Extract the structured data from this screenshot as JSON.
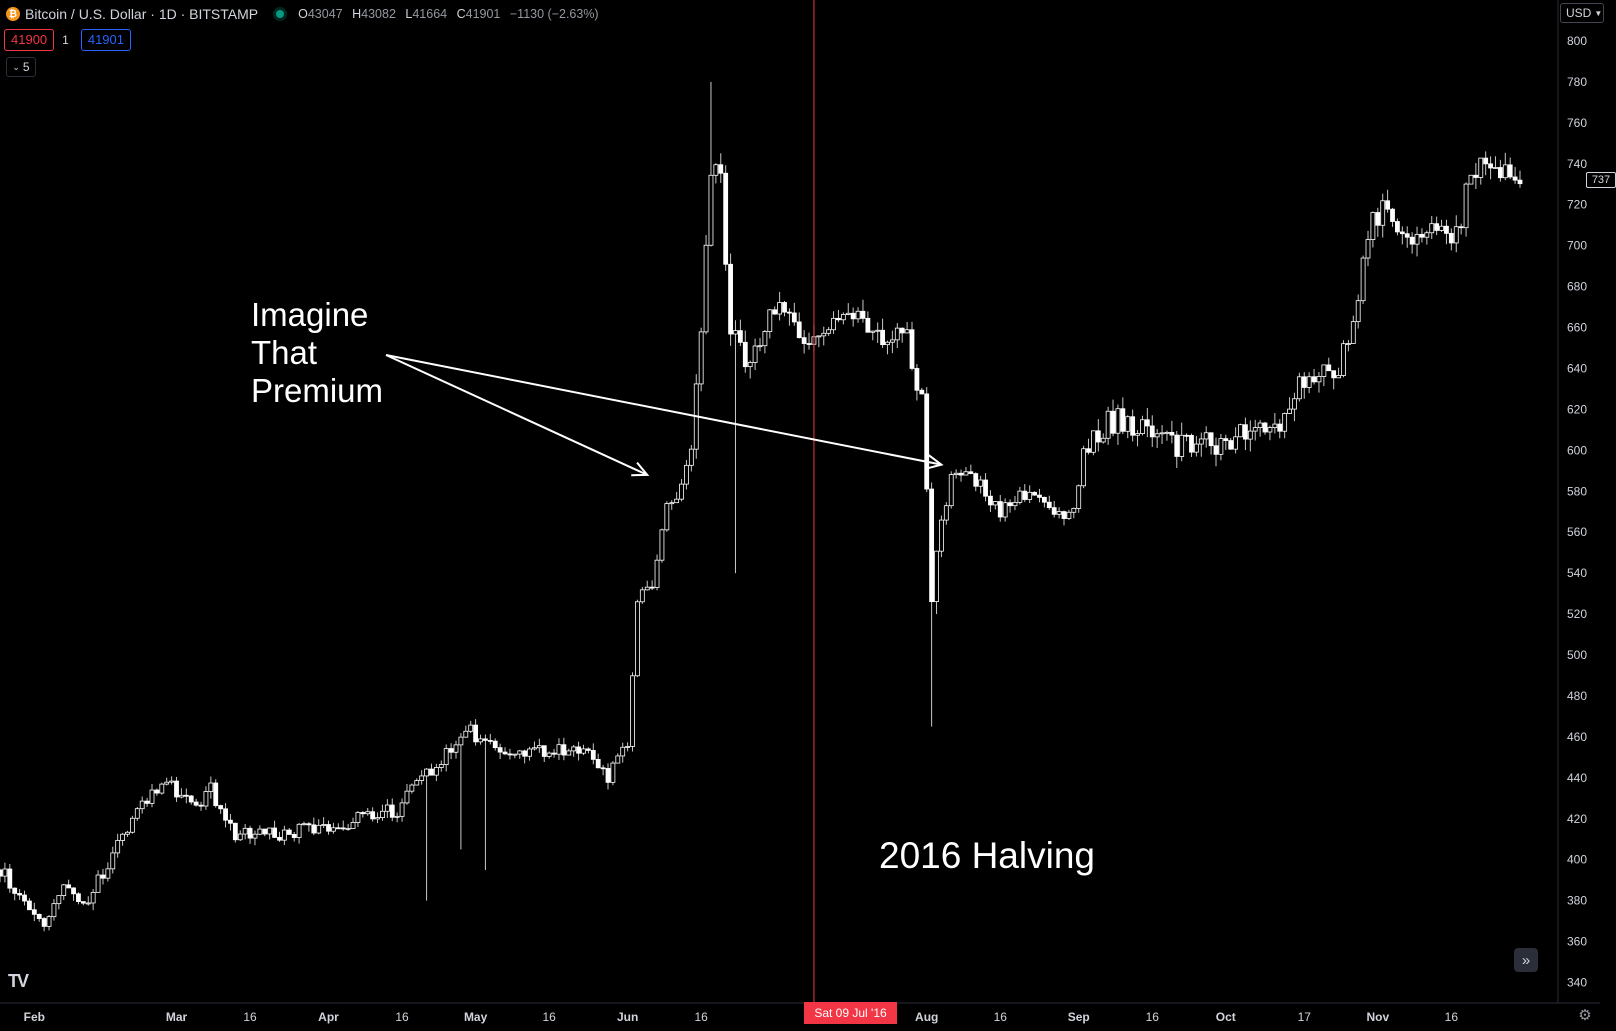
{
  "header": {
    "symbol": "Bitcoin / U.S. Dollar · 1D · BITSTAMP",
    "icon": "bitcoin-icon",
    "ohlc": {
      "o_label": "O",
      "o": "43047",
      "h_label": "H",
      "h": "43082",
      "l_label": "L",
      "l": "41664",
      "c_label": "C",
      "c": "41901",
      "change": "−1130 (−2.63%)"
    }
  },
  "trading": {
    "sell_price": "41900",
    "quantity": "1",
    "buy_price": "41901"
  },
  "indicators_toggle": {
    "count": "5"
  },
  "price_scale": {
    "currency_label": "USD",
    "current_price": "737"
  },
  "crosshair": {
    "date_label": "Sat 09 Jul '16"
  },
  "annotations": {
    "premium": "Imagine That Premium",
    "halving": "2016 Halving"
  },
  "colors": {
    "background": "#000000",
    "candle": "#ffffff",
    "wick": "#c8c8c8",
    "crosshair": "#f23645",
    "axis_text": "#d1d4dc",
    "accent_sell": "#f23645",
    "accent_buy": "#2962ff"
  },
  "chart_data": {
    "type": "candlestick",
    "title": "",
    "xlabel": "",
    "ylabel": "",
    "ylim": [
      330,
      820
    ],
    "x_range": [
      "2016-01-25",
      "2016-11-30"
    ],
    "y_ticks": [
      340,
      360,
      380,
      400,
      420,
      440,
      460,
      480,
      500,
      520,
      540,
      560,
      580,
      600,
      620,
      640,
      660,
      680,
      700,
      720,
      740,
      760,
      780,
      800
    ],
    "x_ticks": [
      {
        "date": "2016-02-01",
        "label": "Feb"
      },
      {
        "date": "2016-03-01",
        "label": "Mar"
      },
      {
        "date": "2016-03-16",
        "label": "16"
      },
      {
        "date": "2016-04-01",
        "label": "Apr"
      },
      {
        "date": "2016-04-16",
        "label": "16"
      },
      {
        "date": "2016-05-01",
        "label": "May"
      },
      {
        "date": "2016-05-16",
        "label": "16"
      },
      {
        "date": "2016-06-01",
        "label": "Jun"
      },
      {
        "date": "2016-06-16",
        "label": "16"
      },
      {
        "date": "2016-08-01",
        "label": "Aug"
      },
      {
        "date": "2016-08-16",
        "label": "16"
      },
      {
        "date": "2016-09-01",
        "label": "Sep"
      },
      {
        "date": "2016-09-16",
        "label": "16"
      },
      {
        "date": "2016-10-01",
        "label": "Oct"
      },
      {
        "date": "2016-10-17",
        "label": "17"
      },
      {
        "date": "2016-11-01",
        "label": "Nov"
      },
      {
        "date": "2016-11-16",
        "label": "16"
      }
    ],
    "crosshair_date": "2016-07-09",
    "close_anchors": [
      [
        "2016-01-25",
        395
      ],
      [
        "2016-01-30",
        378
      ],
      [
        "2016-02-03",
        368
      ],
      [
        "2016-02-07",
        385
      ],
      [
        "2016-02-12",
        378
      ],
      [
        "2016-02-18",
        410
      ],
      [
        "2016-02-24",
        430
      ],
      [
        "2016-02-28",
        440
      ],
      [
        "2016-03-04",
        425
      ],
      [
        "2016-03-08",
        435
      ],
      [
        "2016-03-13",
        412
      ],
      [
        "2016-03-20",
        412
      ],
      [
        "2016-03-30",
        415
      ],
      [
        "2016-04-08",
        420
      ],
      [
        "2016-04-15",
        425
      ],
      [
        "2016-04-20",
        438
      ],
      [
        "2016-04-26",
        455
      ],
      [
        "2016-04-30",
        462
      ],
      [
        "2016-05-06",
        455
      ],
      [
        "2016-05-12",
        452
      ],
      [
        "2016-05-18",
        455
      ],
      [
        "2016-05-24",
        450
      ],
      [
        "2016-05-28",
        440
      ],
      [
        "2016-06-01",
        455
      ],
      [
        "2016-06-03",
        530
      ],
      [
        "2016-06-06",
        535
      ],
      [
        "2016-06-09",
        575
      ],
      [
        "2016-06-12",
        580
      ],
      [
        "2016-06-14",
        600
      ],
      [
        "2016-06-16",
        660
      ],
      [
        "2016-06-18",
        740
      ],
      [
        "2016-06-20",
        730
      ],
      [
        "2016-06-22",
        660
      ],
      [
        "2016-06-24",
        650
      ],
      [
        "2016-06-26",
        640
      ],
      [
        "2016-06-30",
        670
      ],
      [
        "2016-07-03",
        665
      ],
      [
        "2016-07-06",
        655
      ],
      [
        "2016-07-09",
        650
      ],
      [
        "2016-07-12",
        660
      ],
      [
        "2016-07-15",
        665
      ],
      [
        "2016-07-18",
        670
      ],
      [
        "2016-07-21",
        660
      ],
      [
        "2016-07-24",
        655
      ],
      [
        "2016-07-28",
        655
      ],
      [
        "2016-07-31",
        625
      ],
      [
        "2016-08-02",
        530
      ],
      [
        "2016-08-04",
        565
      ],
      [
        "2016-08-06",
        585
      ],
      [
        "2016-08-10",
        588
      ],
      [
        "2016-08-13",
        580
      ],
      [
        "2016-08-16",
        570
      ],
      [
        "2016-08-20",
        578
      ],
      [
        "2016-08-24",
        575
      ],
      [
        "2016-08-28",
        570
      ],
      [
        "2016-08-31",
        572
      ],
      [
        "2016-09-02",
        600
      ],
      [
        "2016-09-06",
        610
      ],
      [
        "2016-09-09",
        618
      ],
      [
        "2016-09-12",
        608
      ],
      [
        "2016-09-18",
        608
      ],
      [
        "2016-09-24",
        600
      ],
      [
        "2016-09-30",
        605
      ],
      [
        "2016-10-06",
        610
      ],
      [
        "2016-10-12",
        612
      ],
      [
        "2016-10-18",
        638
      ],
      [
        "2016-10-22",
        635
      ],
      [
        "2016-10-26",
        650
      ],
      [
        "2016-10-28",
        680
      ],
      [
        "2016-10-31",
        710
      ],
      [
        "2016-11-03",
        720
      ],
      [
        "2016-11-05",
        700
      ],
      [
        "2016-11-09",
        710
      ],
      [
        "2016-11-13",
        712
      ],
      [
        "2016-11-17",
        705
      ],
      [
        "2016-11-20",
        735
      ],
      [
        "2016-11-24",
        740
      ],
      [
        "2016-11-27",
        737
      ],
      [
        "2016-11-30",
        735
      ]
    ],
    "notable_wicks": [
      [
        "2016-04-21",
        380
      ],
      [
        "2016-04-28",
        405
      ],
      [
        "2016-05-03",
        395
      ],
      [
        "2016-06-18",
        780
      ],
      [
        "2016-06-23",
        540
      ],
      [
        "2016-08-02",
        465
      ],
      [
        "2016-08-03",
        520
      ]
    ]
  }
}
